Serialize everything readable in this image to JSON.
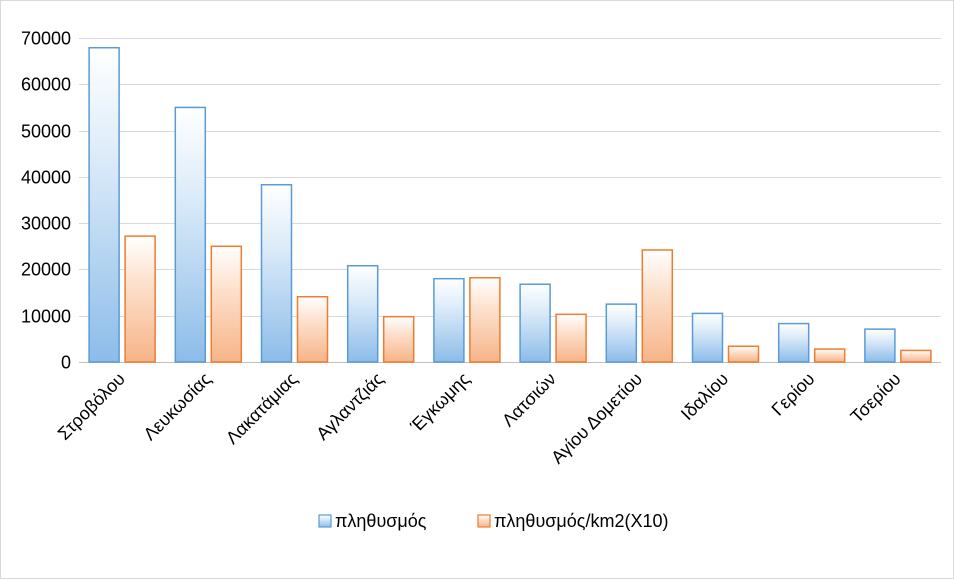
{
  "chart_data": {
    "type": "bar",
    "title": "",
    "xlabel": "",
    "ylabel": "",
    "ylim": [
      0,
      70000
    ],
    "yticks": [
      0,
      10000,
      20000,
      30000,
      40000,
      50000,
      60000,
      70000
    ],
    "grid": true,
    "legend_position": "bottom",
    "categories": [
      "Στροβόλου",
      "Λευκωσίας",
      "Λακατάμιας",
      "Αγλαντζιάς",
      "Έγκωμης",
      "Λατσιών",
      "Αγίου Δομετίου",
      "Ιδαλίου",
      "Γερίου",
      "Τσερίου"
    ],
    "series": [
      {
        "name": "πληθυσμός",
        "color": "#5b9bd5",
        "values": [
          67900,
          55000,
          38300,
          20800,
          18000,
          16800,
          12500,
          10500,
          8300,
          7100
        ]
      },
      {
        "name": "πληθυσμός/km2(X10)",
        "color": "#ed7d31",
        "values": [
          27200,
          25000,
          14100,
          9800,
          18200,
          10300,
          24200,
          3400,
          2800,
          2500
        ]
      }
    ]
  }
}
